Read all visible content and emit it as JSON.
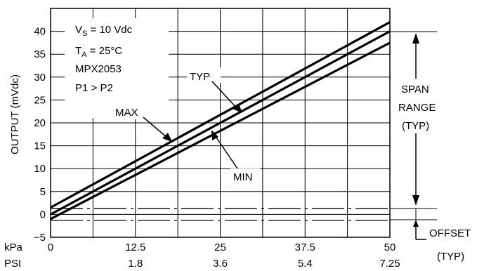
{
  "chart_data": {
    "type": "line",
    "ylabel": "OUTPUT (mVdc)",
    "ylim": [
      -5,
      45
    ],
    "yticks": [
      -5,
      0,
      5,
      10,
      15,
      20,
      25,
      30,
      35,
      40
    ],
    "xlim": [
      0,
      50
    ],
    "grid": true,
    "x_axes": [
      {
        "name": "kPa",
        "ticks": [
          "0",
          "12.5",
          "25",
          "37.5",
          "50"
        ]
      },
      {
        "name": "PSI",
        "ticks": [
          "1.8",
          "3.6",
          "5.4",
          "7.25"
        ]
      }
    ],
    "series": [
      {
        "name": "MAX",
        "x": [
          0,
          50
        ],
        "y": [
          1.5,
          42
        ]
      },
      {
        "name": "TYP",
        "x": [
          0,
          50
        ],
        "y": [
          0,
          40
        ]
      },
      {
        "name": "MIN",
        "x": [
          0,
          50
        ],
        "y": [
          -1,
          37.5
        ]
      }
    ],
    "offset_band": {
      "upper": 1.3,
      "lower": -1.3
    },
    "conditions": {
      "vs": "V",
      "vs_sub": "S",
      "vs_value": " = 10 Vdc",
      "ta": "T",
      "ta_sub": "A",
      "ta_value": " =  25°C",
      "part": "MPX2053",
      "pressure": "P1 > P2"
    },
    "annotations": {
      "span_line1": "SPAN",
      "span_line2": "RANGE",
      "span_line3": "(TYP)",
      "offset_line1": "OFFSET",
      "offset_line2": "(TYP)"
    }
  }
}
